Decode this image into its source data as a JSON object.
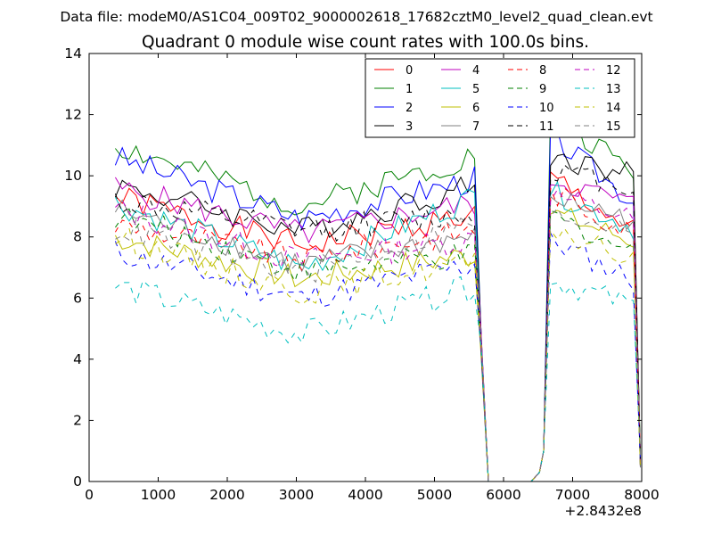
{
  "figure": {
    "suptitle": "Data file: modeM0/AS1C04_009T02_9000002618_17682cztM0_level2_quad_clean.evt"
  },
  "chart_data": {
    "type": "line",
    "title": "Quadrant 0 module wise count rates with 100.0s bins.",
    "xlabel": "",
    "ylabel": "",
    "x_offset_label": "+2.8432e8",
    "xlim": [
      0,
      8000
    ],
    "ylim": [
      0,
      14
    ],
    "xticks": [
      0,
      1000,
      2000,
      3000,
      4000,
      5000,
      6000,
      7000,
      8000
    ],
    "yticks": [
      0,
      2,
      4,
      6,
      8,
      10,
      12,
      14
    ],
    "grid": false,
    "legend_position": "top-right",
    "legend_columns": 4,
    "x_segment_1": [
      380,
      480,
      580,
      680,
      780,
      880,
      980,
      1080,
      1180,
      1280,
      1380,
      1480,
      1580,
      1680,
      1780,
      1880,
      1980,
      2080,
      2180,
      2280,
      2380,
      2480,
      2580,
      2680,
      2780,
      2880,
      2980,
      3080,
      3180,
      3280,
      3380,
      3480,
      3580,
      3680,
      3780,
      3880,
      3980,
      4080,
      4180,
      4280,
      4380,
      4480,
      4580,
      4680,
      4780,
      4880,
      4980,
      5080,
      5180,
      5280,
      5380,
      5480,
      5580,
      5680,
      5780
    ],
    "x_segment_2": [
      6680,
      6780,
      6880,
      6980,
      7080,
      7180,
      7280,
      7380,
      7480,
      7580,
      7680,
      7780,
      7880,
      7980
    ],
    "gap": {
      "x": [
        5780,
        5860,
        6400,
        6520,
        6580,
        6680
      ],
      "values": [
        0.0,
        0.0,
        0.0,
        0.3,
        1.0,
        null
      ]
    },
    "series": [
      {
        "name": "0",
        "color": "#ff0000",
        "dash": "solid",
        "start": 9.3,
        "dip": 7.7,
        "end": 8.8,
        "second": [
          10.0,
          8.0
        ]
      },
      {
        "name": "1",
        "color": "#008000",
        "dash": "solid",
        "start": 11.0,
        "dip": 9.0,
        "end": 10.8,
        "second": [
          12.0,
          10.0
        ]
      },
      {
        "name": "2",
        "color": "#0000ff",
        "dash": "solid",
        "start": 10.6,
        "dip": 8.6,
        "end": 10.0,
        "second": [
          11.3,
          9.0
        ]
      },
      {
        "name": "3",
        "color": "#000000",
        "dash": "solid",
        "start": 9.7,
        "dip": 8.2,
        "end": 9.8,
        "second": [
          10.6,
          10.0
        ]
      },
      {
        "name": "4",
        "color": "#bf00bf",
        "dash": "solid",
        "start": 9.6,
        "dip": 8.1,
        "end": 9.2,
        "second": [
          9.9,
          9.0
        ]
      },
      {
        "name": "5",
        "color": "#00bfbf",
        "dash": "solid",
        "start": 9.1,
        "dip": 7.0,
        "end": 9.5,
        "second": [
          9.5,
          8.2
        ]
      },
      {
        "name": "6",
        "color": "#bfbf00",
        "dash": "solid",
        "start": 8.0,
        "dip": 6.6,
        "end": 7.5,
        "second": [
          8.8,
          7.8
        ]
      },
      {
        "name": "7",
        "color": "#808080",
        "dash": "solid",
        "start": 8.9,
        "dip": 7.1,
        "end": 8.1,
        "second": [
          9.3,
          8.5
        ]
      },
      {
        "name": "8",
        "color": "#ff0000",
        "dash": "dashed",
        "start": 8.4,
        "dip": 7.3,
        "end": 8.3,
        "second": [
          9.5,
          8.0
        ]
      },
      {
        "name": "9",
        "color": "#008000",
        "dash": "dashed",
        "start": 8.7,
        "dip": 6.9,
        "end": 7.4,
        "second": [
          8.7,
          7.4
        ]
      },
      {
        "name": "10",
        "color": "#0000ff",
        "dash": "dashed",
        "start": 7.5,
        "dip": 6.0,
        "end": 7.2,
        "second": [
          7.9,
          6.5
        ]
      },
      {
        "name": "11",
        "color": "#000000",
        "dash": "dashed",
        "start": 9.2,
        "dip": 8.2,
        "end": 8.8,
        "second": [
          10.2,
          9.6
        ]
      },
      {
        "name": "12",
        "color": "#bf00bf",
        "dash": "dashed",
        "start": 8.9,
        "dip": 7.2,
        "end": 8.0,
        "second": [
          9.4,
          8.5
        ]
      },
      {
        "name": "13",
        "color": "#00bfbf",
        "dash": "dashed",
        "start": 6.4,
        "dip": 4.8,
        "end": 6.5,
        "second": [
          6.6,
          5.7
        ]
      },
      {
        "name": "14",
        "color": "#bfbf00",
        "dash": "dashed",
        "start": 8.0,
        "dip": 6.2,
        "end": 7.3,
        "second": [
          8.3,
          7.1
        ]
      },
      {
        "name": "15",
        "color": "#808080",
        "dash": "dashed",
        "start": 8.3,
        "dip": 6.8,
        "end": 8.6,
        "second": [
          8.7,
          8.4
        ]
      }
    ]
  }
}
